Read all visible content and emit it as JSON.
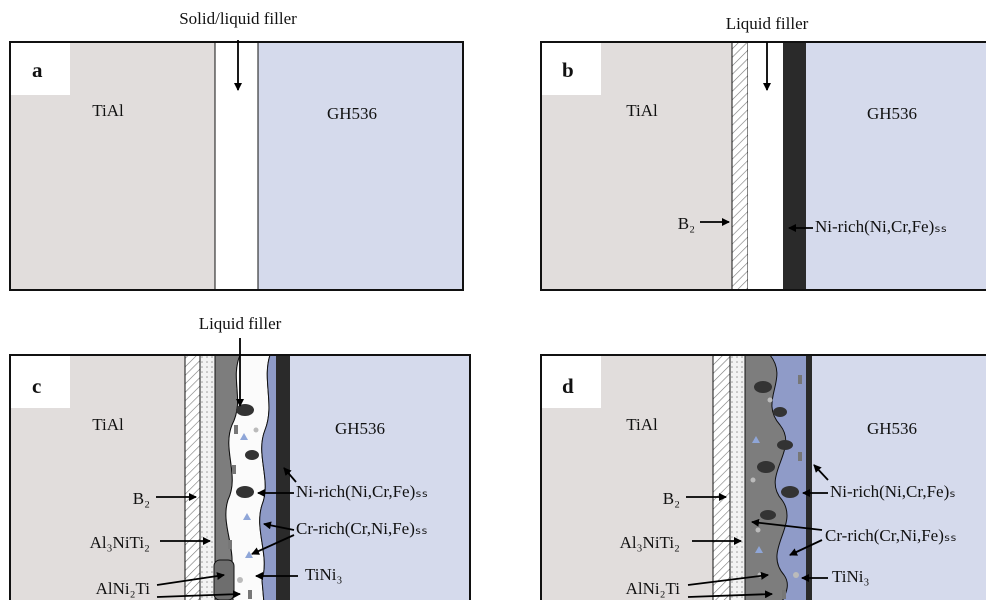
{
  "panels": [
    {
      "label": "a",
      "title": "Solid/liquid filler",
      "left": "TiAl",
      "right": "GH536"
    },
    {
      "label": "b",
      "title": "Liquid filler",
      "left": "TiAl",
      "right": "GH536",
      "annotations": [
        "B₂",
        "Ni-rich(Ni,Cr,Fe)ₛₛ"
      ]
    },
    {
      "label": "c",
      "title": "Liquid filler",
      "left": "TiAl",
      "right": "GH536",
      "annotations": [
        "B₂",
        "Al₃NiTi₂",
        "AlNi₂Ti",
        "Ni-rich(Ni,Cr,Fe)ₛₛ",
        "Cr-rich(Cr,Ni,Fe)ₛₛ",
        "TiNi₃"
      ]
    },
    {
      "label": "d",
      "left": "TiAl",
      "right": "GH536",
      "annotations": [
        "B₂",
        "Al₃NiTi₂",
        "AlNi₂Ti",
        "Ni-rich(Ni,Cr,Fe)ₛ",
        "Cr-rich(Cr,Ni,Fe)ₛₛ",
        "TiNi₃"
      ]
    }
  ]
}
